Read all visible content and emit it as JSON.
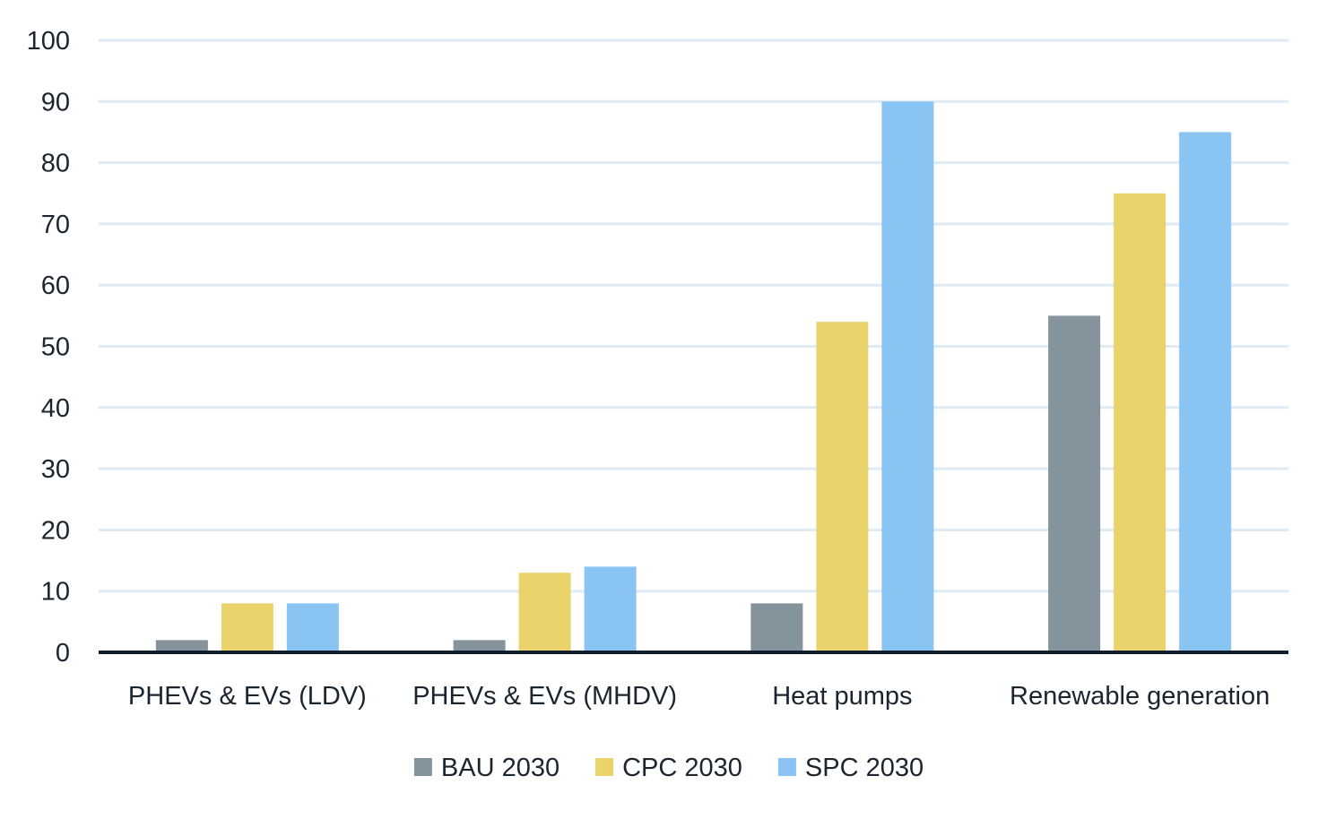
{
  "chart_data": {
    "type": "bar",
    "title": "",
    "xlabel": "",
    "ylabel": "",
    "ylim": [
      0,
      100
    ],
    "yticks": [
      0,
      10,
      20,
      30,
      40,
      50,
      60,
      70,
      80,
      90,
      100
    ],
    "grid": true,
    "legend_position": "bottom",
    "categories": [
      "PHEVs & EVs (LDV)",
      "PHEVs & EVs (MHDV)",
      "Heat pumps",
      "Renewable generation"
    ],
    "series": [
      {
        "name": "BAU 2030",
        "color": "#85939d",
        "values": [
          2,
          2,
          8,
          55
        ]
      },
      {
        "name": "CPC 2030",
        "color": "#e9d36a",
        "values": [
          8,
          13,
          54,
          75
        ]
      },
      {
        "name": "SPC 2030",
        "color": "#8ac4f2",
        "values": [
          8,
          14,
          90,
          85
        ]
      }
    ],
    "colors": {
      "gridline": "#deeaf4",
      "baseline": "#0f1e2c",
      "text": "#1a2530"
    }
  }
}
